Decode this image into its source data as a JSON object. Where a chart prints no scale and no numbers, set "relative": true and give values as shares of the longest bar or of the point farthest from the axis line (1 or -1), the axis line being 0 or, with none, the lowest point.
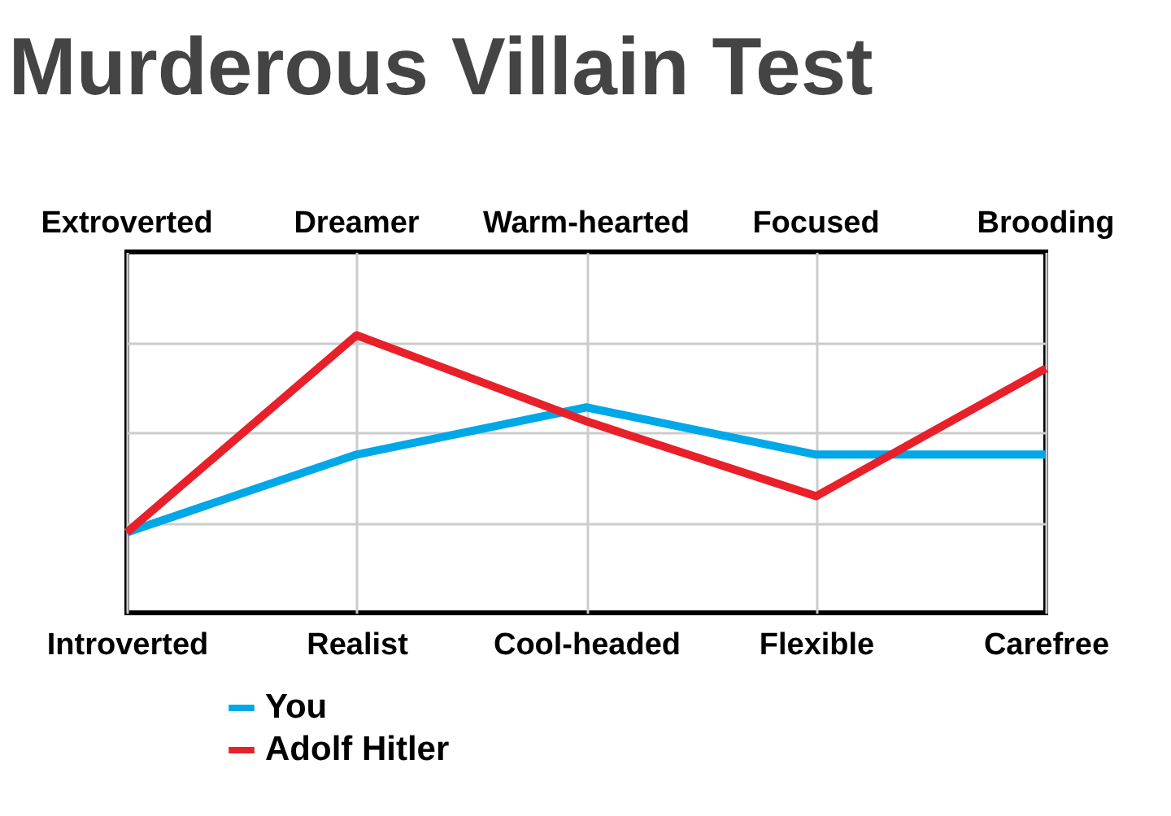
{
  "chart_data": {
    "type": "line",
    "title": "Murderous Villain Test",
    "relative": true,
    "categories": [
      "Introverted",
      "Realist",
      "Cool-headed",
      "Flexible",
      "Carefree"
    ],
    "annotations": [
      "Extroverted",
      "Dreamer",
      "Warm-hearted",
      "Focused",
      "Brooding"
    ],
    "series": [
      {
        "name": "You",
        "color": "#00a8e8",
        "values": [
          0.29,
          0.57,
          0.74,
          0.57,
          0.57
        ]
      },
      {
        "name": "Adolf Hitler",
        "color": "#e8202a",
        "values": [
          0.29,
          1,
          0.69,
          0.42,
          0.88
        ]
      }
    ],
    "grid": true,
    "legend": "bottom left",
    "marker": "none",
    "line_style": "solid"
  }
}
